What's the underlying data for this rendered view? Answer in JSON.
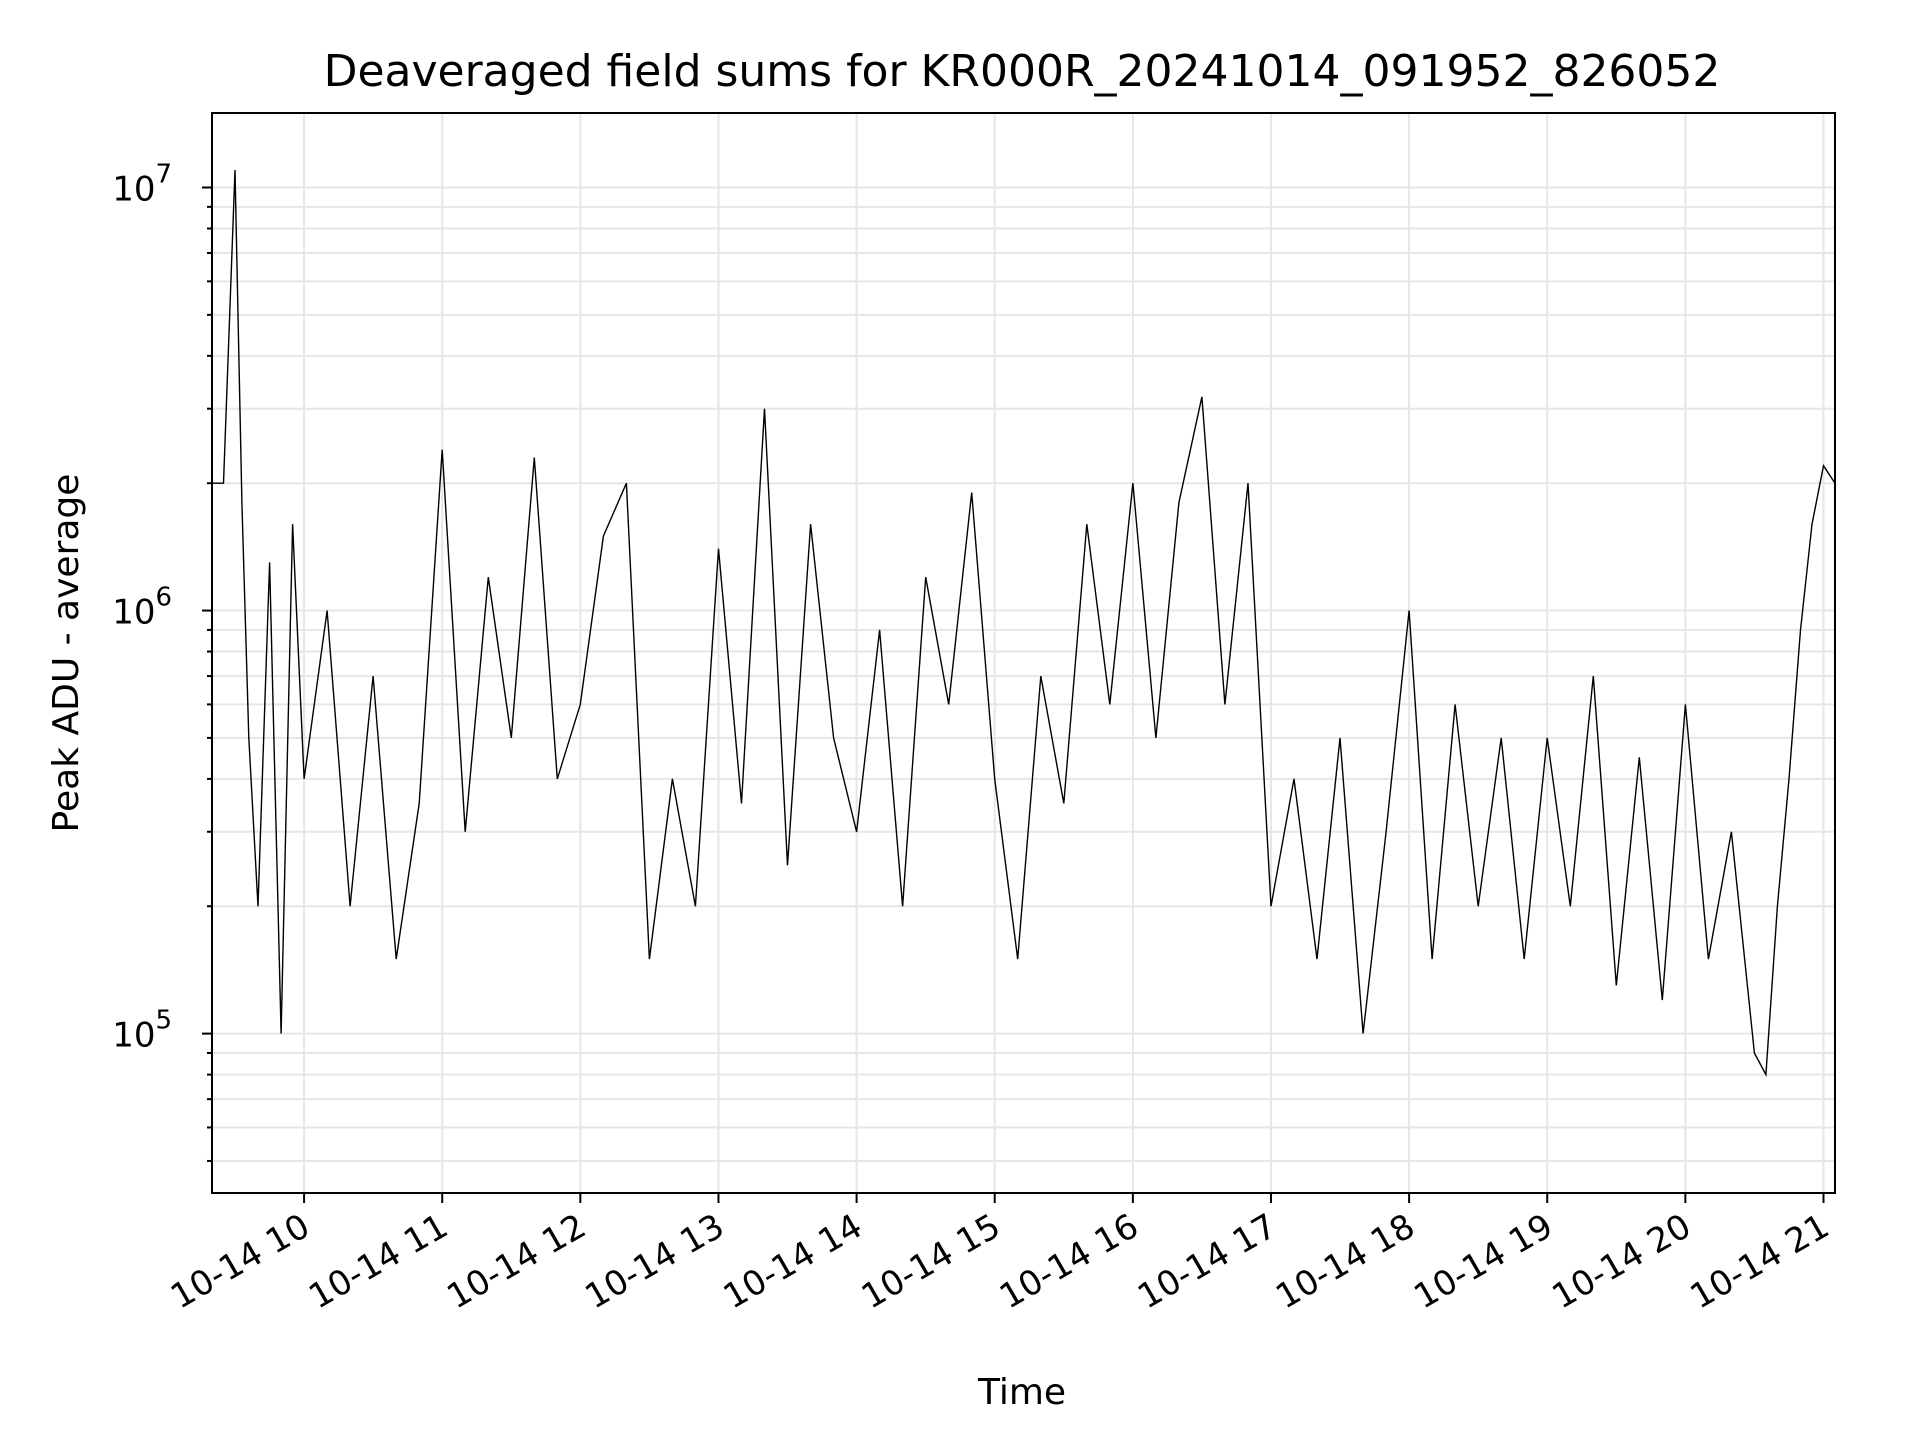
{
  "chart_data": {
    "type": "line",
    "title": "Deaveraged field sums for KR000R_20241014_091952_826052",
    "xlabel": "Time",
    "ylabel": "Peak ADU - average",
    "y_scale": "log",
    "ylim": [
      42000,
      15000000
    ],
    "xlim": [
      "2024-10-14 09:20",
      "2024-10-14 21:05"
    ],
    "x_ticks": [
      "10-14 10",
      "10-14 11",
      "10-14 12",
      "10-14 13",
      "10-14 14",
      "10-14 15",
      "10-14 16",
      "10-14 17",
      "10-14 18",
      "10-14 19",
      "10-14 20",
      "10-14 21"
    ],
    "y_ticks": [
      {
        "base": "10",
        "exp": "5"
      },
      {
        "base": "10",
        "exp": "6"
      },
      {
        "base": "10",
        "exp": "7"
      }
    ],
    "grid": true,
    "line_color": "#000000",
    "series": [
      {
        "x": [
          "2024-10-14 09:20",
          "2024-10-14 09:25",
          "2024-10-14 09:30",
          "2024-10-14 09:33",
          "2024-10-14 09:36",
          "2024-10-14 09:40",
          "2024-10-14 09:45",
          "2024-10-14 09:50",
          "2024-10-14 09:55",
          "2024-10-14 10:00",
          "2024-10-14 10:10",
          "2024-10-14 10:20",
          "2024-10-14 10:30",
          "2024-10-14 10:40",
          "2024-10-14 10:50",
          "2024-10-14 11:00",
          "2024-10-14 11:10",
          "2024-10-14 11:20",
          "2024-10-14 11:30",
          "2024-10-14 11:40",
          "2024-10-14 11:50",
          "2024-10-14 12:00",
          "2024-10-14 12:10",
          "2024-10-14 12:20",
          "2024-10-14 12:30",
          "2024-10-14 12:40",
          "2024-10-14 12:50",
          "2024-10-14 13:00",
          "2024-10-14 13:10",
          "2024-10-14 13:20",
          "2024-10-14 13:30",
          "2024-10-14 13:40",
          "2024-10-14 13:50",
          "2024-10-14 14:00",
          "2024-10-14 14:10",
          "2024-10-14 14:20",
          "2024-10-14 14:30",
          "2024-10-14 14:40",
          "2024-10-14 14:50",
          "2024-10-14 15:00",
          "2024-10-14 15:10",
          "2024-10-14 15:20",
          "2024-10-14 15:30",
          "2024-10-14 15:40",
          "2024-10-14 15:50",
          "2024-10-14 16:00",
          "2024-10-14 16:10",
          "2024-10-14 16:20",
          "2024-10-14 16:30",
          "2024-10-14 16:40",
          "2024-10-14 16:50",
          "2024-10-14 17:00",
          "2024-10-14 17:10",
          "2024-10-14 17:20",
          "2024-10-14 17:30",
          "2024-10-14 17:40",
          "2024-10-14 17:50",
          "2024-10-14 18:00",
          "2024-10-14 18:10",
          "2024-10-14 18:20",
          "2024-10-14 18:30",
          "2024-10-14 18:40",
          "2024-10-14 18:50",
          "2024-10-14 19:00",
          "2024-10-14 19:10",
          "2024-10-14 19:20",
          "2024-10-14 19:30",
          "2024-10-14 19:40",
          "2024-10-14 19:50",
          "2024-10-14 20:00",
          "2024-10-14 20:10",
          "2024-10-14 20:20",
          "2024-10-14 20:30",
          "2024-10-14 20:35",
          "2024-10-14 20:40",
          "2024-10-14 20:45",
          "2024-10-14 20:50",
          "2024-10-14 20:55",
          "2024-10-14 21:00",
          "2024-10-14 21:05"
        ],
        "y": [
          2000000,
          2000000,
          11000000,
          1800000,
          500000,
          200000,
          1300000,
          100000,
          1600000,
          400000,
          1000000,
          200000,
          700000,
          150000,
          350000,
          2400000,
          300000,
          1200000,
          500000,
          2300000,
          400000,
          600000,
          1500000,
          2000000,
          150000,
          400000,
          200000,
          1400000,
          350000,
          3000000,
          250000,
          1600000,
          500000,
          300000,
          900000,
          200000,
          1200000,
          600000,
          1900000,
          400000,
          150000,
          700000,
          350000,
          1600000,
          600000,
          2000000,
          500000,
          1800000,
          3200000,
          600000,
          2000000,
          200000,
          400000,
          150000,
          500000,
          100000,
          300000,
          1000000,
          150000,
          600000,
          200000,
          500000,
          150000,
          500000,
          200000,
          700000,
          130000,
          450000,
          120000,
          600000,
          150000,
          300000,
          90000,
          80000,
          200000,
          400000,
          900000,
          1600000,
          2200000,
          2000000
        ]
      }
    ]
  }
}
